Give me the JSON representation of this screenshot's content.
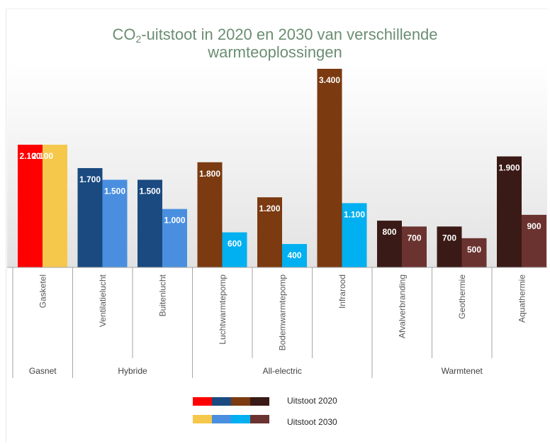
{
  "chart_data": {
    "type": "bar",
    "title_prefix": "CO",
    "title_sub": "2",
    "title_rest": "-uitstoot in 2020 en 2030 van verschillende",
    "title_line2": "warmteoplossingen",
    "categories": [
      "Gasketel",
      "Ventilatielucht",
      "Buitenlucht",
      "Luchtwarmtepomp",
      "Bodemwarmtepomp",
      "Infrarood",
      "Afvalverbranding",
      "Geothermie",
      "Aquathermie"
    ],
    "groups": [
      {
        "label": "Gasnet",
        "count": 1
      },
      {
        "label": "Hybride",
        "count": 2
      },
      {
        "label": "All-electric",
        "count": 3
      },
      {
        "label": "Warmtenet",
        "count": 3
      }
    ],
    "series": [
      {
        "name": "Uitstoot 2020",
        "values": [
          2100,
          1700,
          1500,
          1800,
          1200,
          3400,
          800,
          700,
          1900
        ],
        "labels": [
          "2.100",
          "1.700",
          "1.500",
          "1.800",
          "1.200",
          "3.400",
          "800",
          "700",
          "1.900"
        ]
      },
      {
        "name": "Uitstoot 2030",
        "values": [
          2100,
          1500,
          1000,
          600,
          400,
          1100,
          700,
          500,
          900
        ],
        "labels": [
          "",
          "1.500",
          "1.000",
          "600",
          "400",
          "1.100",
          "700",
          "500",
          "900"
        ]
      }
    ],
    "ylim": [
      0,
      3500
    ],
    "combined_label": {
      "index": 0,
      "text": "2.100"
    },
    "colors_2020": [
      "#ff0000",
      "#1a4a80",
      "#1a4a80",
      "#7b3a10",
      "#7b3a10",
      "#7b3a10",
      "#3a1a16",
      "#3a1a16",
      "#3a1a16"
    ],
    "colors_2030": [
      "#f5c84c",
      "#4a8fdf",
      "#4a8fdf",
      "#00b0f0",
      "#00b0f0",
      "#00b0f0",
      "#6b3330",
      "#6b3330",
      "#6b3330"
    ],
    "legend_2020_colors": [
      "#ff0000",
      "#1a4a80",
      "#7b3a10",
      "#3a1a16"
    ],
    "legend_2030_colors": [
      "#f5c84c",
      "#4a8fdf",
      "#00b0f0",
      "#6b3330"
    ]
  },
  "legend": {
    "label_2020": "Uitstoot 2020",
    "label_2030": "Uitstoot 2030"
  }
}
